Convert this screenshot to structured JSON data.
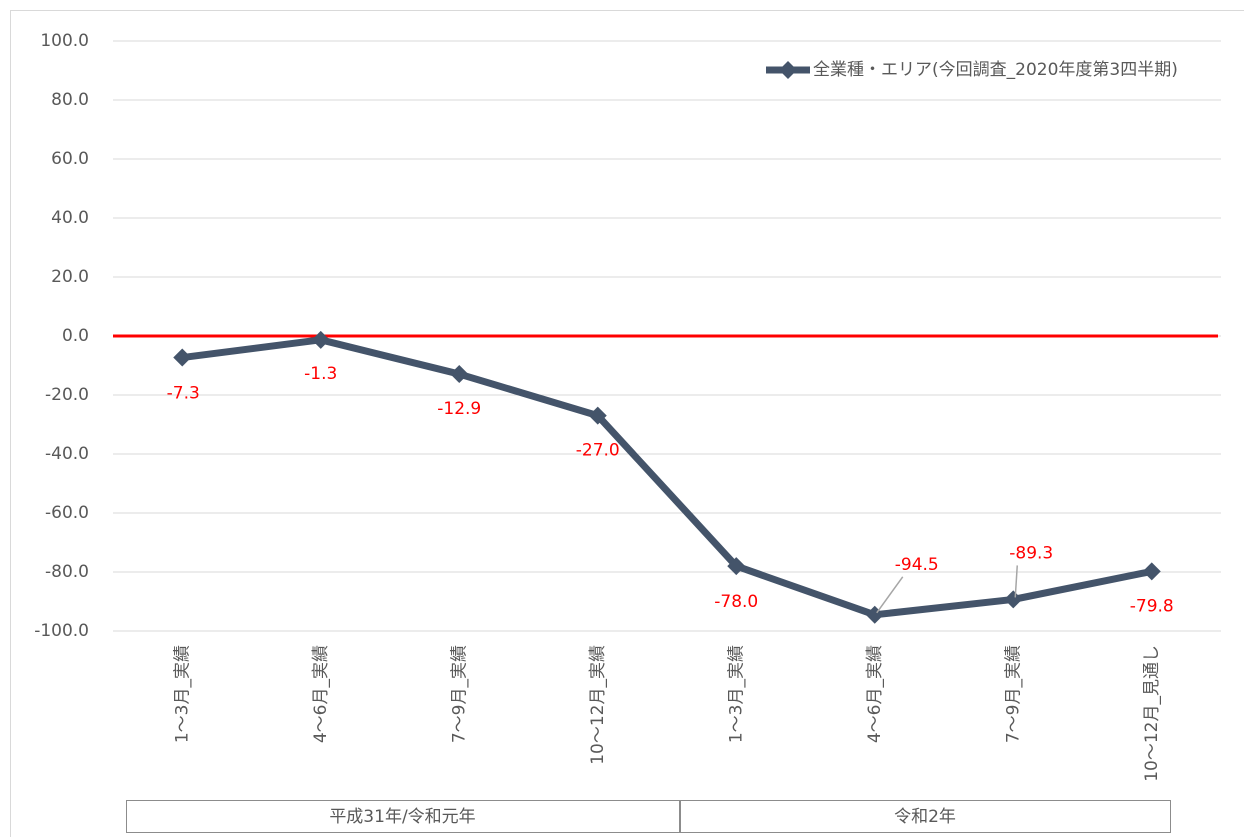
{
  "chart_data": {
    "type": "line",
    "categories": [
      "1～3月_実績",
      "4～6月_実績",
      "7～9月_実績",
      "10～12月_実績",
      "1～3月_実績",
      "4～6月_実績",
      "7～9月_実績",
      "10～12月_見通し"
    ],
    "category_groups": [
      {
        "label": "平成31年/令和元年",
        "count": 4
      },
      {
        "label": "令和2年",
        "count": 4
      }
    ],
    "series": [
      {
        "name": "全業種・エリア(今回調査_2020年度第3四半期)",
        "color": "#44546a",
        "values": [
          -7.3,
          -1.3,
          -12.9,
          -27.0,
          -78.0,
          -94.5,
          -89.3,
          -79.8
        ],
        "value_labels": [
          "-7.3",
          "-1.3",
          "-12.9",
          "-27.0",
          "-78.0",
          "-94.5",
          "-89.3",
          "-79.8"
        ],
        "label_color": "#ff0000"
      }
    ],
    "ylim": [
      -100,
      100
    ],
    "yticks": [
      {
        "value": -100,
        "label": "-100.0"
      },
      {
        "value": -80,
        "label": "-80.0"
      },
      {
        "value": -60,
        "label": "-60.0"
      },
      {
        "value": -40,
        "label": "-40.0"
      },
      {
        "value": -20,
        "label": "-20.0"
      },
      {
        "value": 0,
        "label": "0.0"
      },
      {
        "value": 20,
        "label": "20.0"
      },
      {
        "value": 40,
        "label": "40.0"
      },
      {
        "value": 60,
        "label": "60.0"
      },
      {
        "value": 80,
        "label": "80.0"
      },
      {
        "value": 100,
        "label": "100.0"
      }
    ],
    "grid": true,
    "reference_line": {
      "value": 0,
      "color": "#ff0000"
    },
    "legend": "upper right"
  }
}
